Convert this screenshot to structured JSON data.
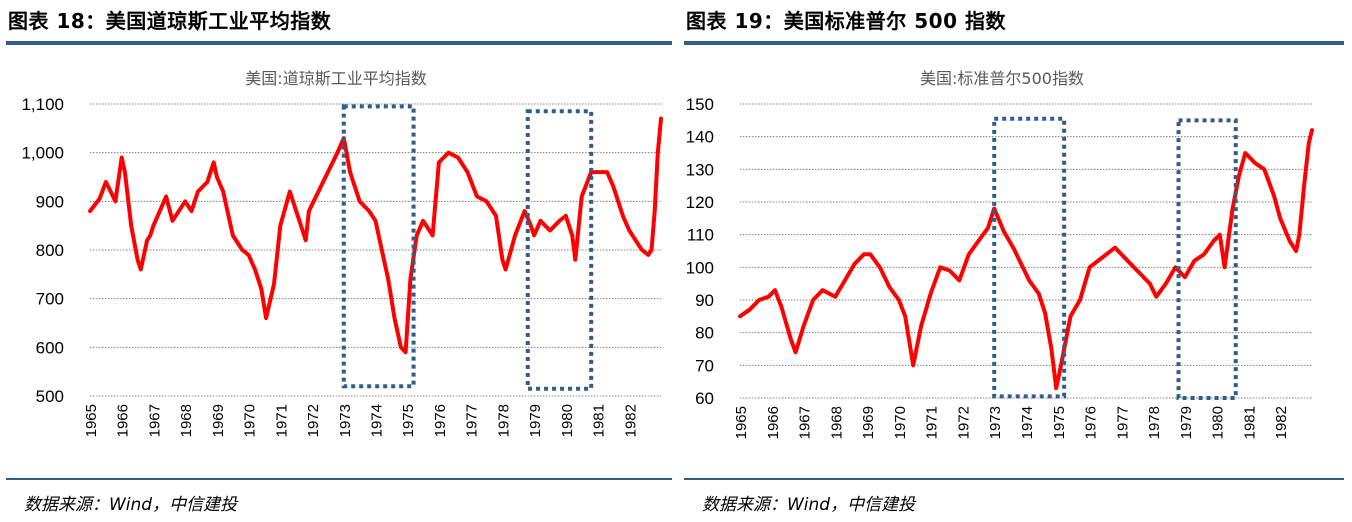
{
  "colors": {
    "rule": "#2f5d8c",
    "series": "#ff0000",
    "box": "#2f5d8c",
    "grid": "#808080",
    "chart_title": "#595959"
  },
  "panels": [
    {
      "heading": "图表 18：美国道琼斯工业平均指数",
      "source": "数据来源：Wind，中信建投"
    },
    {
      "heading": "图表 19：美国标准普尔 500 指数",
      "source": "数据来源：Wind，中信建投"
    }
  ],
  "chart_data": [
    {
      "type": "line",
      "title": "美国:道琼斯工业平均指数",
      "ylim": [
        500,
        1100
      ],
      "yticks": [
        500,
        600,
        700,
        800,
        900,
        1000,
        1100
      ],
      "ytick_labels": [
        "500",
        "600",
        "700",
        "800",
        "900",
        "1,000",
        "1,100"
      ],
      "xlim": [
        1965,
        1983
      ],
      "xticks": [
        "1965",
        "1966",
        "1967",
        "1968",
        "1969",
        "1970",
        "1971",
        "1972",
        "1973",
        "1974",
        "1975",
        "1976",
        "1977",
        "1978",
        "1979",
        "1980",
        "1981",
        "1982"
      ],
      "grid": "horizontal dotted",
      "highlight_periods": [
        {
          "x": [
            1973.0,
            1975.2
          ],
          "y": [
            520,
            1095
          ]
        },
        {
          "x": [
            1978.8,
            1980.8
          ],
          "y": [
            515,
            1085
          ]
        }
      ],
      "series": [
        {
          "x": [
            1965.0,
            1965.3,
            1965.5,
            1965.8,
            1966.0,
            1966.1,
            1966.3,
            1966.5,
            1966.6,
            1966.8,
            1966.9,
            1967.0,
            1967.2,
            1967.4,
            1967.6,
            1967.9,
            1968.0,
            1968.2,
            1968.4,
            1968.7,
            1968.9,
            1969.0,
            1969.2,
            1969.5,
            1969.8,
            1970.0,
            1970.2,
            1970.4,
            1970.55,
            1970.8,
            1971.0,
            1971.3,
            1971.6,
            1971.8,
            1971.9,
            1972.2,
            1972.5,
            1972.8,
            1973.0,
            1973.2,
            1973.5,
            1973.8,
            1974.0,
            1974.2,
            1974.4,
            1974.6,
            1974.8,
            1974.95,
            1975.1,
            1975.3,
            1975.5,
            1975.8,
            1976.0,
            1976.3,
            1976.6,
            1976.9,
            1977.2,
            1977.5,
            1977.8,
            1978.0,
            1978.1,
            1978.4,
            1978.7,
            1978.9,
            1979.0,
            1979.2,
            1979.5,
            1979.8,
            1980.0,
            1980.2,
            1980.3,
            1980.5,
            1980.8,
            1981.0,
            1981.3,
            1981.5,
            1981.8,
            1982.0,
            1982.2,
            1982.4,
            1982.6,
            1982.7,
            1982.8,
            1982.9,
            1983.0
          ],
          "y": [
            880,
            905,
            940,
            900,
            990,
            960,
            850,
            780,
            760,
            820,
            830,
            850,
            880,
            910,
            860,
            890,
            900,
            880,
            920,
            940,
            980,
            950,
            920,
            830,
            800,
            790,
            760,
            720,
            660,
            730,
            850,
            920,
            860,
            820,
            880,
            920,
            960,
            1000,
            1030,
            960,
            900,
            880,
            860,
            800,
            740,
            660,
            600,
            590,
            740,
            830,
            860,
            830,
            980,
            1000,
            990,
            960,
            910,
            900,
            870,
            780,
            760,
            830,
            880,
            850,
            830,
            860,
            840,
            860,
            870,
            830,
            780,
            910,
            960,
            960,
            960,
            930,
            870,
            840,
            820,
            800,
            790,
            800,
            880,
            1000,
            1070
          ]
        }
      ]
    },
    {
      "type": "line",
      "title": "美国:标准普尔500指数",
      "ylim": [
        60,
        150
      ],
      "yticks": [
        60,
        70,
        80,
        90,
        100,
        110,
        120,
        130,
        140,
        150
      ],
      "ytick_labels": [
        "60",
        "70",
        "80",
        "90",
        "100",
        "110",
        "120",
        "130",
        "140",
        "150"
      ],
      "xlim": [
        1965,
        1983
      ],
      "xticks": [
        "1965",
        "1966",
        "1967",
        "1968",
        "1969",
        "1970",
        "1971",
        "1972",
        "1973",
        "1974",
        "1975",
        "1976",
        "1977",
        "1978",
        "1979",
        "1980",
        "1981",
        "1982"
      ],
      "grid": "horizontal dotted",
      "highlight_periods": [
        {
          "x": [
            1973.0,
            1975.2
          ],
          "y": [
            60.5,
            145.5
          ]
        },
        {
          "x": [
            1978.8,
            1980.6
          ],
          "y": [
            60,
            145
          ]
        }
      ],
      "series": [
        {
          "x": [
            1965.0,
            1965.3,
            1965.6,
            1965.9,
            1966.1,
            1966.3,
            1966.6,
            1966.75,
            1967.0,
            1967.3,
            1967.6,
            1968.0,
            1968.3,
            1968.6,
            1968.9,
            1969.1,
            1969.4,
            1969.7,
            1970.0,
            1970.2,
            1970.45,
            1970.7,
            1971.0,
            1971.3,
            1971.6,
            1971.9,
            1972.2,
            1972.5,
            1972.8,
            1973.0,
            1973.3,
            1973.6,
            1973.9,
            1974.1,
            1974.4,
            1974.6,
            1974.8,
            1974.95,
            1975.1,
            1975.4,
            1975.7,
            1976.0,
            1976.4,
            1976.8,
            1977.2,
            1977.6,
            1977.9,
            1978.1,
            1978.4,
            1978.7,
            1979.0,
            1979.3,
            1979.6,
            1979.9,
            1980.1,
            1980.25,
            1980.5,
            1980.7,
            1980.9,
            1981.2,
            1981.5,
            1981.8,
            1982.0,
            1982.3,
            1982.5,
            1982.6,
            1982.75,
            1982.9,
            1983.0
          ],
          "y": [
            85,
            87,
            90,
            91,
            93,
            88,
            78,
            74,
            82,
            90,
            93,
            91,
            96,
            101,
            104,
            104,
            100,
            94,
            90,
            85,
            70,
            82,
            92,
            100,
            99,
            96,
            104,
            108,
            112,
            118,
            111,
            106,
            100,
            96,
            92,
            86,
            75,
            63,
            70,
            85,
            90,
            100,
            103,
            106,
            102,
            98,
            95,
            91,
            95,
            100,
            97,
            102,
            104,
            108,
            110,
            100,
            118,
            128,
            135,
            132,
            130,
            122,
            115,
            108,
            105,
            110,
            125,
            138,
            142
          ]
        }
      ]
    }
  ]
}
